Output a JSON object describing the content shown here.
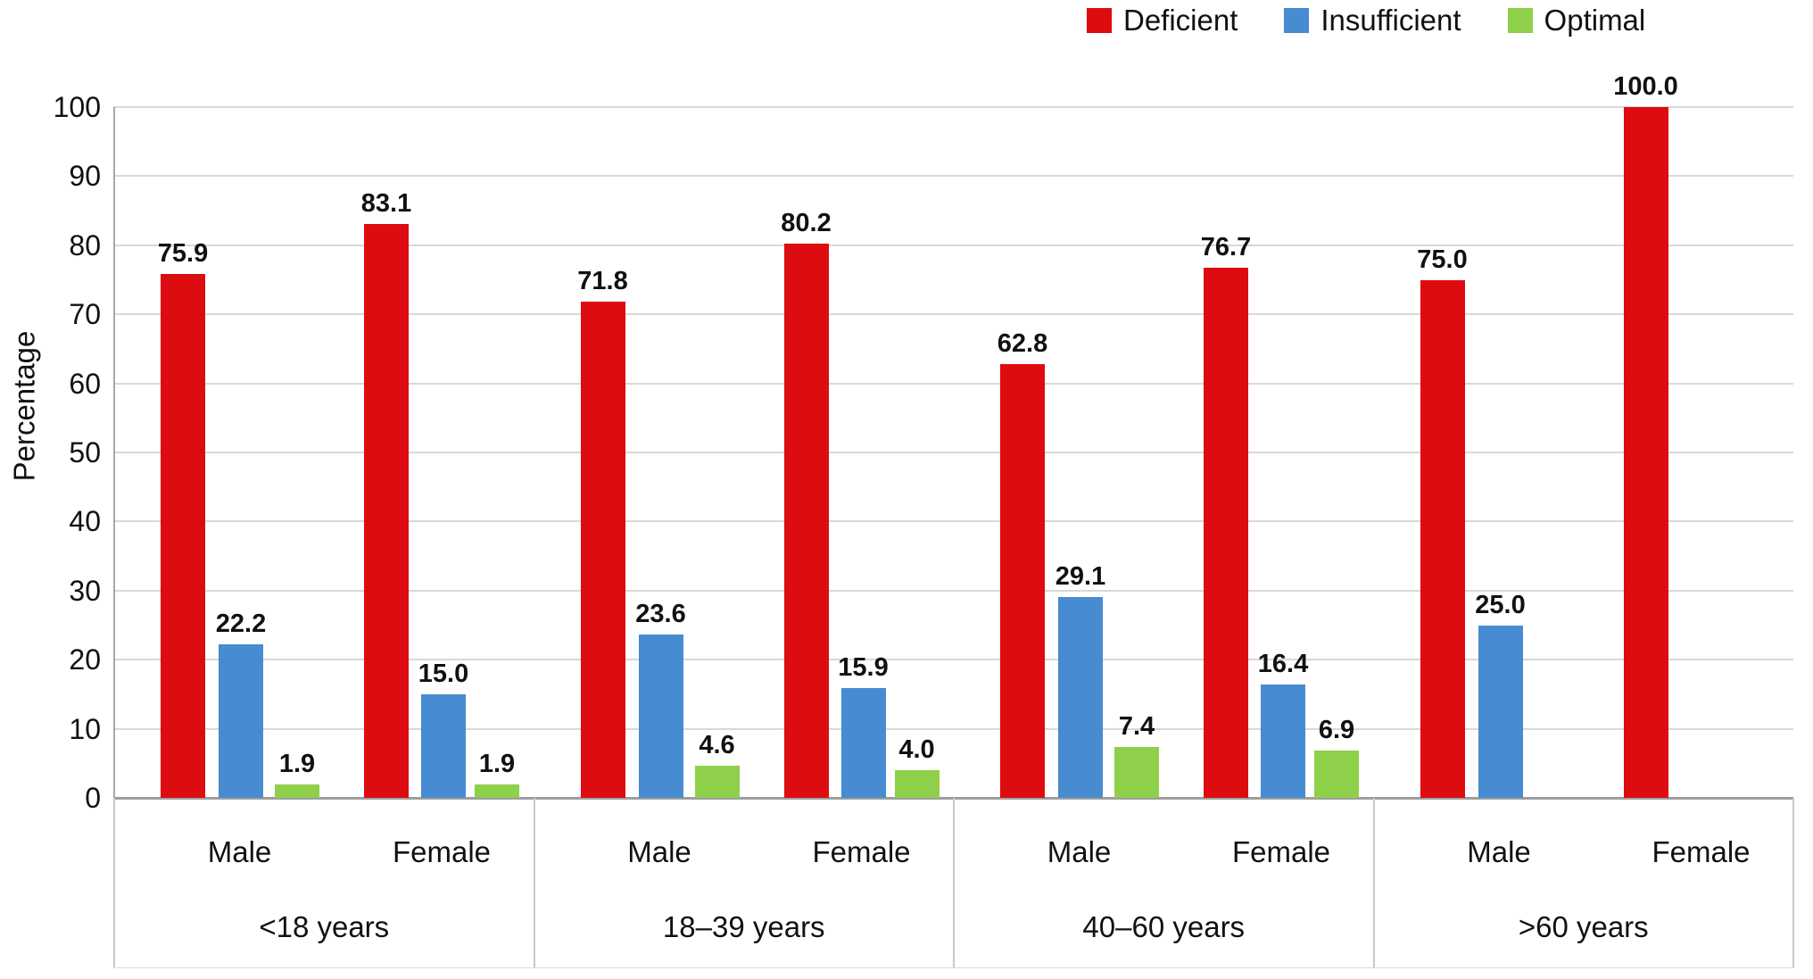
{
  "chart_data": {
    "type": "bar",
    "title": "",
    "ylabel": "Percentage",
    "ylim": [
      0,
      100
    ],
    "ytick_step": 10,
    "grid": true,
    "legend_position": "top-right",
    "value_label_decimals": 1,
    "series": [
      {
        "name": "Deficient",
        "color": "#dc0c10"
      },
      {
        "name": "Insufficient",
        "color": "#478bd1"
      },
      {
        "name": "Optimal",
        "color": "#8fd04a"
      }
    ],
    "groups": [
      {
        "label": "<18 years",
        "subgroups": [
          {
            "label": "Male",
            "values": [
              75.9,
              22.2,
              1.9
            ]
          },
          {
            "label": "Female",
            "values": [
              83.1,
              15.0,
              1.9
            ]
          }
        ]
      },
      {
        "label": "18–39 years",
        "subgroups": [
          {
            "label": "Male",
            "values": [
              71.8,
              23.6,
              4.6
            ]
          },
          {
            "label": "Female",
            "values": [
              80.2,
              15.9,
              4.0
            ]
          }
        ]
      },
      {
        "label": "40–60 years",
        "subgroups": [
          {
            "label": "Male",
            "values": [
              62.8,
              29.1,
              7.4
            ]
          },
          {
            "label": "Female",
            "values": [
              76.7,
              16.4,
              6.9
            ]
          }
        ]
      },
      {
        "label": ">60 years",
        "subgroups": [
          {
            "label": "Male",
            "values": [
              75.0,
              25.0,
              null
            ]
          },
          {
            "label": "Female",
            "values": [
              100.0,
              null,
              null
            ]
          }
        ]
      }
    ]
  }
}
